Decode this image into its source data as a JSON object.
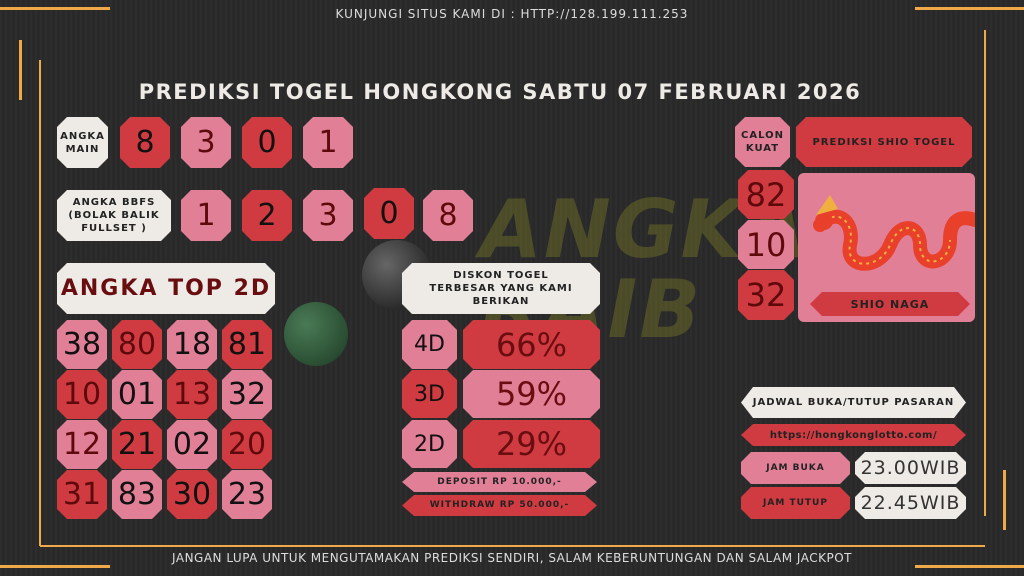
{
  "header": {
    "visit_text": "KUNJUNGI SITUS KAMI DI : HTTP://128.199.111.253",
    "title": "PREDIKSI TOGEL HONGKONG SABTU 07 FEBRUARI 2026"
  },
  "watermark": "ANGKA RAIB",
  "angka_main": {
    "label": "ANGKA MAIN",
    "digits": [
      "8",
      "3",
      "0",
      "1"
    ]
  },
  "angka_bbfs": {
    "label": "ANGKA BBFS (BOLAK BALIK FULLSET )",
    "digits": [
      "1",
      "2",
      "3",
      "0",
      "8"
    ]
  },
  "top2d": {
    "label": "ANGKA TOP 2D",
    "numbers": [
      "38",
      "80",
      "18",
      "81",
      "10",
      "01",
      "13",
      "32",
      "12",
      "21",
      "02",
      "20",
      "31",
      "83",
      "30",
      "23"
    ]
  },
  "diskon": {
    "label": "DISKON TOGEL TERBESAR YANG KAMI BERIKAN",
    "rows": [
      {
        "type": "4D",
        "value": "66%"
      },
      {
        "type": "3D",
        "value": "59%"
      },
      {
        "type": "2D",
        "value": "29%"
      }
    ],
    "deposit": "DEPOSIT RP 10.000,-",
    "withdraw": "WITHDRAW RP 50.000,-"
  },
  "shio": {
    "calon_label": "CALON KUAT",
    "title": "PREDIKSI SHIO TOGEL",
    "numbers": [
      "82",
      "10",
      "32"
    ],
    "name": "SHIO NAGA"
  },
  "jadwal": {
    "title": "JADWAL BUKA/TUTUP PASARAN",
    "url": "https://hongkonglotto.com/",
    "buka_label": "JAM BUKA",
    "buka_value": "23.00WIB",
    "tutup_label": "JAM TUTUP",
    "tutup_value": "22.45WIB"
  },
  "footer": {
    "text": "JANGAN LUPA UNTUK MENGUTAMAKAN PREDIKSI SENDIRI, SALAM KEBERUNTUNGAN DAN SALAM JACKPOT"
  },
  "colors": {
    "pink": "#e17f97",
    "red": "#cf3b40",
    "white": "#eeebe6",
    "accent": "#f0a948",
    "background": "#2a2a2a"
  }
}
